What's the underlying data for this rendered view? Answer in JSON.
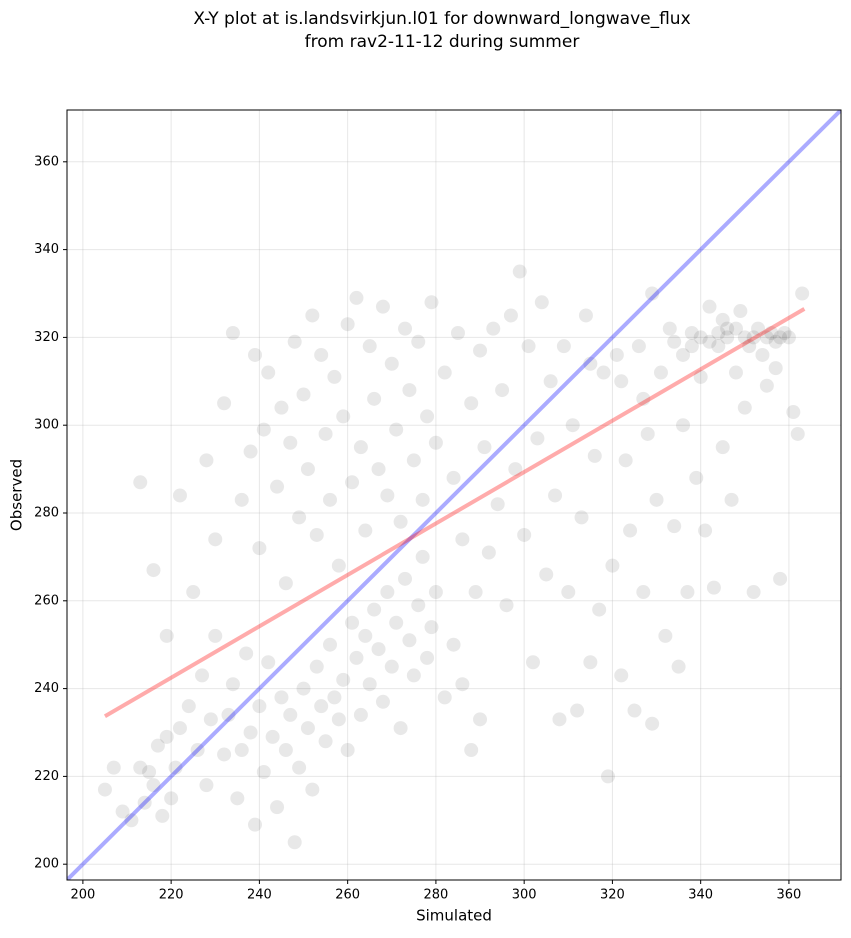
{
  "chart_data": {
    "type": "scatter",
    "title": [
      "X-Y plot at is.landsvirkjun.l01 for downward_longwave_flux",
      "from rav2-11-12 during summer"
    ],
    "x_label": "Simulated",
    "y_label": "Observed",
    "xlim": [
      196.4,
      371.8
    ],
    "ylim": [
      196.4,
      371.8
    ],
    "xticks": [
      200,
      220,
      240,
      260,
      280,
      300,
      320,
      340,
      360
    ],
    "yticks": [
      200,
      220,
      240,
      260,
      280,
      300,
      320,
      340,
      360
    ],
    "grid": true,
    "color": "#000000",
    "x": [
      205,
      207,
      209,
      211,
      213,
      214,
      215,
      216,
      217,
      218,
      219,
      220,
      221,
      222,
      224,
      226,
      227,
      228,
      229,
      230,
      232,
      233,
      234,
      235,
      236,
      237,
      238,
      239,
      240,
      241,
      242,
      243,
      244,
      245,
      246,
      247,
      248,
      249,
      250,
      251,
      252,
      253,
      254,
      255,
      256,
      257,
      258,
      259,
      260,
      261,
      262,
      263,
      264,
      265,
      266,
      267,
      268,
      269,
      270,
      271,
      272,
      273,
      274,
      275,
      276,
      277,
      278,
      279,
      280,
      282,
      284,
      286,
      288,
      290,
      213,
      216,
      219,
      222,
      225,
      228,
      230,
      232,
      234,
      236,
      238,
      239,
      240,
      241,
      242,
      244,
      245,
      246,
      247,
      248,
      249,
      250,
      251,
      252,
      253,
      254,
      255,
      256,
      257,
      258,
      259,
      260,
      261,
      262,
      263,
      264,
      265,
      266,
      267,
      268,
      269,
      270,
      271,
      272,
      273,
      274,
      275,
      276,
      277,
      278,
      279,
      280,
      282,
      284,
      285,
      286,
      288,
      289,
      290,
      291,
      292,
      293,
      294,
      295,
      296,
      297,
      298,
      299,
      300,
      301,
      302,
      303,
      304,
      305,
      306,
      307,
      308,
      309,
      310,
      311,
      312,
      313,
      314,
      315,
      316,
      317,
      318,
      319,
      320,
      321,
      322,
      323,
      324,
      325,
      326,
      327,
      328,
      329,
      330,
      331,
      332,
      333,
      334,
      335,
      336,
      337,
      338,
      339,
      340,
      341,
      342,
      343,
      344,
      345,
      346,
      347,
      348,
      349,
      350,
      351,
      352,
      353,
      354,
      355,
      356,
      357,
      358,
      359,
      360,
      361,
      362,
      363,
      358,
      352,
      345,
      340,
      342,
      344,
      346,
      348,
      350,
      338,
      336,
      334,
      355,
      357,
      322,
      327,
      315,
      329
    ],
    "y": [
      217,
      222,
      212,
      210,
      222,
      214,
      221,
      218,
      227,
      211,
      229,
      215,
      222,
      231,
      236,
      226,
      243,
      218,
      233,
      252,
      225,
      234,
      241,
      215,
      226,
      248,
      230,
      209,
      236,
      221,
      246,
      229,
      213,
      238,
      226,
      234,
      205,
      222,
      240,
      231,
      217,
      245,
      236,
      228,
      250,
      238,
      233,
      242,
      226,
      255,
      247,
      234,
      252,
      241,
      258,
      249,
      237,
      262,
      245,
      255,
      231,
      265,
      251,
      243,
      259,
      270,
      247,
      254,
      262,
      238,
      250,
      241,
      226,
      233,
      287,
      267,
      252,
      284,
      262,
      292,
      274,
      305,
      321,
      283,
      294,
      316,
      272,
      299,
      312,
      286,
      304,
      264,
      296,
      319,
      279,
      307,
      290,
      325,
      275,
      316,
      298,
      283,
      311,
      268,
      302,
      323,
      287,
      329,
      295,
      276,
      318,
      306,
      290,
      327,
      284,
      314,
      299,
      278,
      322,
      308,
      292,
      319,
      283,
      302,
      328,
      296,
      312,
      288,
      321,
      274,
      305,
      262,
      317,
      295,
      271,
      322,
      282,
      308,
      259,
      325,
      290,
      335,
      275,
      318,
      246,
      297,
      328,
      266,
      310,
      284,
      233,
      318,
      262,
      300,
      235,
      279,
      325,
      246,
      293,
      258,
      312,
      220,
      268,
      316,
      243,
      292,
      276,
      235,
      318,
      262,
      298,
      232,
      283,
      312,
      252,
      322,
      277,
      245,
      300,
      262,
      321,
      288,
      311,
      276,
      327,
      263,
      318,
      295,
      322,
      283,
      312,
      326,
      304,
      318,
      320,
      322,
      316,
      320,
      321,
      319,
      320,
      321,
      320,
      303,
      298,
      330,
      265,
      262,
      324,
      320,
      319,
      321,
      320,
      322,
      320,
      318,
      316,
      319,
      309,
      313,
      310,
      306,
      314,
      330
    ],
    "lines": [
      {
        "color": "#0000ff",
        "x": [
          196.4,
          371.8
        ],
        "y": [
          196.4,
          371.8
        ]
      },
      {
        "color": "#ff0000",
        "x": [
          205,
          363.5
        ],
        "y": [
          233.7,
          326.5
        ]
      }
    ]
  }
}
